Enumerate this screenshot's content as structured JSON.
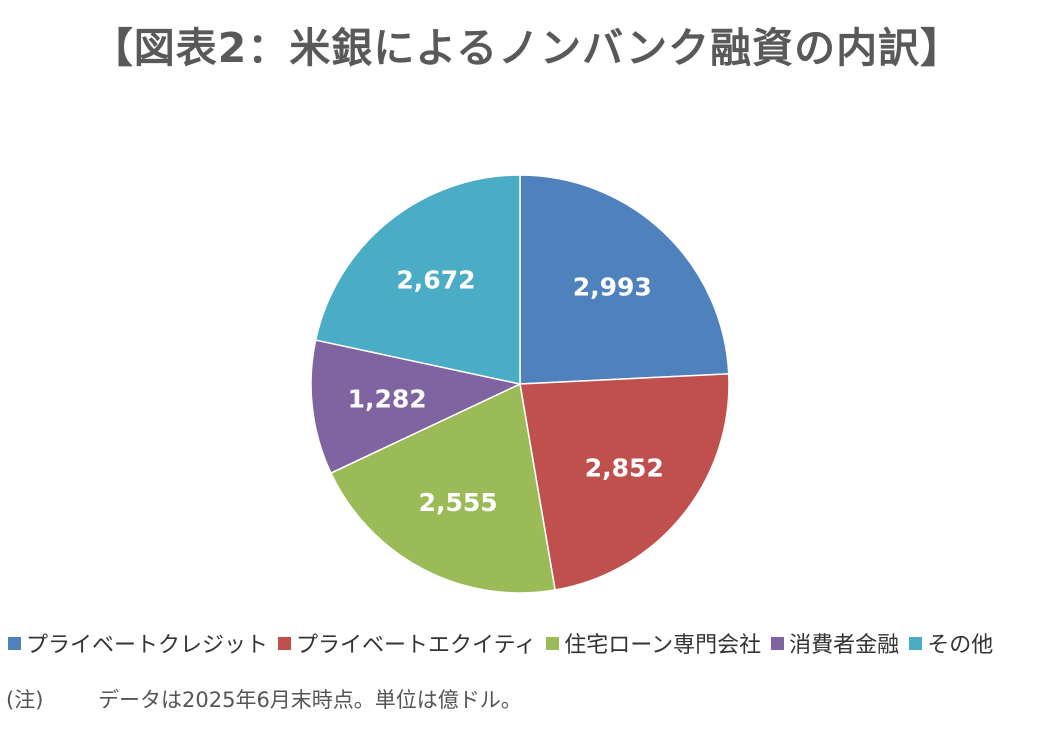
{
  "title": "【図表2：米銀によるノンバンク融資の内訳】",
  "chart_data": {
    "type": "pie",
    "title": "【図表2：米銀によるノンバンク融資の内訳】",
    "categories": [
      "プライベートクレジット",
      "プライベートエクイティ",
      "住宅ローン専門会社",
      "消費者金融",
      "その他"
    ],
    "values": [
      2993,
      2852,
      2555,
      1282,
      2672
    ],
    "value_labels": [
      "2,993",
      "2,852",
      "2,555",
      "1,282",
      "2,672"
    ],
    "colors": [
      "#4F81BD",
      "#C0504D",
      "#9BBB59",
      "#8064A2",
      "#4BACC6"
    ],
    "start_angle_deg": 0,
    "direction": "clockwise",
    "legend_position": "bottom",
    "unit": "億ドル"
  },
  "note": {
    "prefix": "(注)",
    "text": "データは2025年6月末時点。単位は億ドル。"
  }
}
